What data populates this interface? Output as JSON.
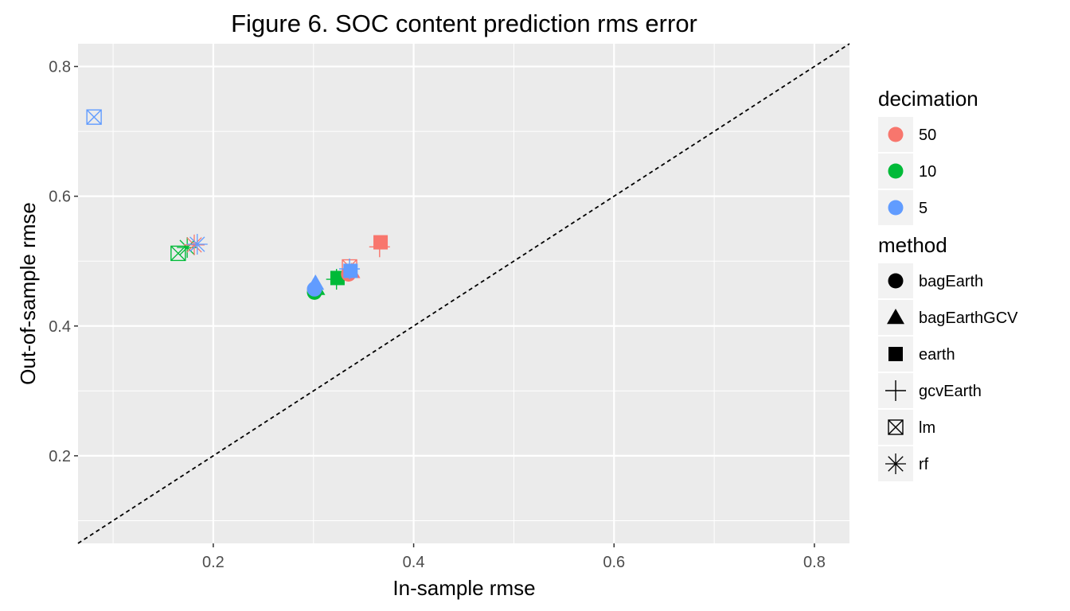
{
  "chart_data": {
    "type": "scatter",
    "title": "Figure 6. SOC content prediction rms error",
    "xlabel": "In-sample rmse",
    "ylabel": "Out-of-sample rmse",
    "xlim": [
      0.065,
      0.835
    ],
    "ylim": [
      0.065,
      0.835
    ],
    "x_ticks": [
      0.2,
      0.4,
      0.6,
      0.8
    ],
    "y_ticks": [
      0.2,
      0.4,
      0.6,
      0.8
    ],
    "x_tick_labels": [
      "0.2",
      "0.4",
      "0.6",
      "0.8"
    ],
    "y_tick_labels": [
      "0.2",
      "0.4",
      "0.6",
      "0.8"
    ],
    "grid": true,
    "reference_line": {
      "type": "identity",
      "style": "dashed",
      "color": "#000000"
    },
    "panel_background": "#EBEBEB",
    "legends": [
      {
        "title": "decimation",
        "placement": "right",
        "entries": [
          {
            "label": "50",
            "color": "#F8766D"
          },
          {
            "label": "10",
            "color": "#00BA38"
          },
          {
            "label": "5",
            "color": "#619CFF"
          }
        ]
      },
      {
        "title": "method",
        "placement": "right",
        "entries": [
          {
            "label": "bagEarth",
            "shape": "circle"
          },
          {
            "label": "bagEarthGCV",
            "shape": "triangle"
          },
          {
            "label": "earth",
            "shape": "square"
          },
          {
            "label": "gcvEarth",
            "shape": "plus"
          },
          {
            "label": "lm",
            "shape": "boxed-x"
          },
          {
            "label": "rf",
            "shape": "asterisk"
          }
        ]
      }
    ],
    "points": [
      {
        "method": "lm",
        "decimation": "5",
        "x": 0.081,
        "y": 0.722
      },
      {
        "method": "lm",
        "decimation": "10",
        "x": 0.165,
        "y": 0.512
      },
      {
        "method": "rf",
        "decimation": "10",
        "x": 0.174,
        "y": 0.521
      },
      {
        "method": "rf",
        "decimation": "50",
        "x": 0.181,
        "y": 0.525
      },
      {
        "method": "rf",
        "decimation": "5",
        "x": 0.184,
        "y": 0.526
      },
      {
        "method": "bagEarth",
        "decimation": "10",
        "x": 0.301,
        "y": 0.452
      },
      {
        "method": "bagEarthGCV",
        "decimation": "10",
        "x": 0.303,
        "y": 0.458
      },
      {
        "method": "bagEarth",
        "decimation": "5",
        "x": 0.301,
        "y": 0.457
      },
      {
        "method": "bagEarthGCV",
        "decimation": "5",
        "x": 0.302,
        "y": 0.466
      },
      {
        "method": "gcvEarth",
        "decimation": "10",
        "x": 0.323,
        "y": 0.472
      },
      {
        "method": "earth",
        "decimation": "10",
        "x": 0.324,
        "y": 0.474
      },
      {
        "method": "bagEarth",
        "decimation": "50",
        "x": 0.335,
        "y": 0.48
      },
      {
        "method": "bagEarthGCV",
        "decimation": "50",
        "x": 0.338,
        "y": 0.484
      },
      {
        "method": "lm",
        "decimation": "50",
        "x": 0.336,
        "y": 0.491
      },
      {
        "method": "gcvEarth",
        "decimation": "5",
        "x": 0.336,
        "y": 0.488
      },
      {
        "method": "earth",
        "decimation": "5",
        "x": 0.337,
        "y": 0.485
      },
      {
        "method": "gcvEarth",
        "decimation": "50",
        "x": 0.366,
        "y": 0.522
      },
      {
        "method": "earth",
        "decimation": "50",
        "x": 0.367,
        "y": 0.529
      }
    ]
  }
}
